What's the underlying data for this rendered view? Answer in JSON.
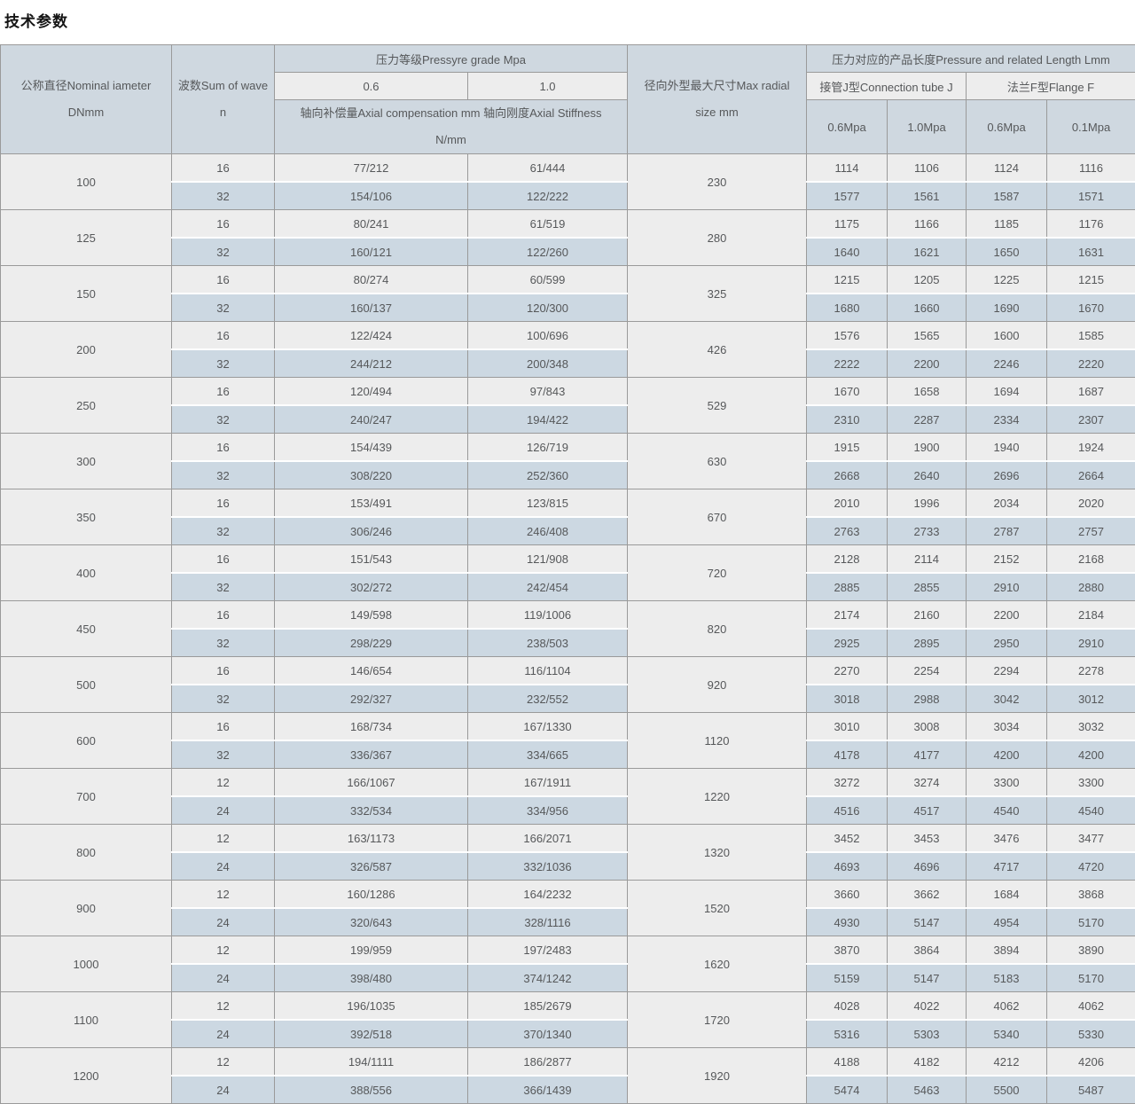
{
  "page_title": "技术参数",
  "colors": {
    "header_bg": "#cfd8e0",
    "subheader_bg": "#ededed",
    "row_light_bg": "#ededed",
    "row_blue_bg": "#ccd8e2",
    "border": "#9a9a9a",
    "text": "#56585a"
  },
  "table": {
    "headers": {
      "dn_line1": "公称直径Nominal iameter",
      "dn_line2": "DNmm",
      "wave_line1": "波数Sum of wave",
      "wave_line2": "n",
      "pressure_grade": "压力等级Pressyre grade Mpa",
      "grade_06": "0.6",
      "grade_10": "1.0",
      "axial_line1": "轴向补偿量Axial compensation mm 轴向刚度Axial Stiffness",
      "axial_line2": "N/mm",
      "radial_line1": "径向外型最大尺寸Max radial",
      "radial_line2": "size mm",
      "length_group": "压力对应的产品长度Pressure and related Length Lmm",
      "connection_tube": "接管J型Connection tube J",
      "flange": "法兰F型Flange F",
      "sub_cols": [
        "0.6Mpa",
        "1.0Mpa",
        "0.6Mpa",
        "0.1Mpa"
      ]
    },
    "rows": [
      {
        "dn": "100",
        "radial": "230",
        "sub": [
          {
            "waves": "16",
            "axial_06": "77/212",
            "axial_10": "61/444",
            "lengths": [
              "1114",
              "1106",
              "1124",
              "1116"
            ]
          },
          {
            "waves": "32",
            "axial_06": "154/106",
            "axial_10": "122/222",
            "lengths": [
              "1577",
              "1561",
              "1587",
              "1571"
            ]
          }
        ]
      },
      {
        "dn": "125",
        "radial": "280",
        "sub": [
          {
            "waves": "16",
            "axial_06": "80/241",
            "axial_10": "61/519",
            "lengths": [
              "1175",
              "1166",
              "1185",
              "1176"
            ]
          },
          {
            "waves": "32",
            "axial_06": "160/121",
            "axial_10": "122/260",
            "lengths": [
              "1640",
              "1621",
              "1650",
              "1631"
            ]
          }
        ]
      },
      {
        "dn": "150",
        "radial": "325",
        "sub": [
          {
            "waves": "16",
            "axial_06": "80/274",
            "axial_10": "60/599",
            "lengths": [
              "1215",
              "1205",
              "1225",
              "1215"
            ]
          },
          {
            "waves": "32",
            "axial_06": "160/137",
            "axial_10": "120/300",
            "lengths": [
              "1680",
              "1660",
              "1690",
              "1670"
            ]
          }
        ]
      },
      {
        "dn": "200",
        "radial": "426",
        "sub": [
          {
            "waves": "16",
            "axial_06": "122/424",
            "axial_10": "100/696",
            "lengths": [
              "1576",
              "1565",
              "1600",
              "1585"
            ]
          },
          {
            "waves": "32",
            "axial_06": "244/212",
            "axial_10": "200/348",
            "lengths": [
              "2222",
              "2200",
              "2246",
              "2220"
            ]
          }
        ]
      },
      {
        "dn": "250",
        "radial": "529",
        "sub": [
          {
            "waves": "16",
            "axial_06": "120/494",
            "axial_10": "97/843",
            "lengths": [
              "1670",
              "1658",
              "1694",
              "1687"
            ]
          },
          {
            "waves": "32",
            "axial_06": "240/247",
            "axial_10": "194/422",
            "lengths": [
              "2310",
              "2287",
              "2334",
              "2307"
            ]
          }
        ]
      },
      {
        "dn": "300",
        "radial": "630",
        "sub": [
          {
            "waves": "16",
            "axial_06": "154/439",
            "axial_10": "126/719",
            "lengths": [
              "1915",
              "1900",
              "1940",
              "1924"
            ]
          },
          {
            "waves": "32",
            "axial_06": "308/220",
            "axial_10": "252/360",
            "lengths": [
              "2668",
              "2640",
              "2696",
              "2664"
            ]
          }
        ]
      },
      {
        "dn": "350",
        "radial": "670",
        "sub": [
          {
            "waves": "16",
            "axial_06": "153/491",
            "axial_10": "123/815",
            "lengths": [
              "2010",
              "1996",
              "2034",
              "2020"
            ]
          },
          {
            "waves": "32",
            "axial_06": "306/246",
            "axial_10": "246/408",
            "lengths": [
              "2763",
              "2733",
              "2787",
              "2757"
            ]
          }
        ]
      },
      {
        "dn": "400",
        "radial": "720",
        "sub": [
          {
            "waves": "16",
            "axial_06": "151/543",
            "axial_10": "121/908",
            "lengths": [
              "2128",
              "2114",
              "2152",
              "2168"
            ]
          },
          {
            "waves": "32",
            "axial_06": "302/272",
            "axial_10": "242/454",
            "lengths": [
              "2885",
              "2855",
              "2910",
              "2880"
            ]
          }
        ]
      },
      {
        "dn": "450",
        "radial": "820",
        "sub": [
          {
            "waves": "16",
            "axial_06": "149/598",
            "axial_10": "119/1006",
            "lengths": [
              "2174",
              "2160",
              "2200",
              "2184"
            ]
          },
          {
            "waves": "32",
            "axial_06": "298/229",
            "axial_10": "238/503",
            "lengths": [
              "2925",
              "2895",
              "2950",
              "2910"
            ]
          }
        ]
      },
      {
        "dn": "500",
        "radial": "920",
        "sub": [
          {
            "waves": "16",
            "axial_06": "146/654",
            "axial_10": "116/1104",
            "lengths": [
              "2270",
              "2254",
              "2294",
              "2278"
            ]
          },
          {
            "waves": "32",
            "axial_06": "292/327",
            "axial_10": "232/552",
            "lengths": [
              "3018",
              "2988",
              "3042",
              "3012"
            ]
          }
        ]
      },
      {
        "dn": "600",
        "radial": "1120",
        "sub": [
          {
            "waves": "16",
            "axial_06": "168/734",
            "axial_10": "167/1330",
            "lengths": [
              "3010",
              "3008",
              "3034",
              "3032"
            ]
          },
          {
            "waves": "32",
            "axial_06": "336/367",
            "axial_10": "334/665",
            "lengths": [
              "4178",
              "4177",
              "4200",
              "4200"
            ]
          }
        ]
      },
      {
        "dn": "700",
        "radial": "1220",
        "sub": [
          {
            "waves": "12",
            "axial_06": "166/1067",
            "axial_10": "167/1911",
            "lengths": [
              "3272",
              "3274",
              "3300",
              "3300"
            ]
          },
          {
            "waves": "24",
            "axial_06": "332/534",
            "axial_10": "334/956",
            "lengths": [
              "4516",
              "4517",
              "4540",
              "4540"
            ]
          }
        ]
      },
      {
        "dn": "800",
        "radial": "1320",
        "sub": [
          {
            "waves": "12",
            "axial_06": "163/1173",
            "axial_10": "166/2071",
            "lengths": [
              "3452",
              "3453",
              "3476",
              "3477"
            ]
          },
          {
            "waves": "24",
            "axial_06": "326/587",
            "axial_10": "332/1036",
            "lengths": [
              "4693",
              "4696",
              "4717",
              "4720"
            ]
          }
        ]
      },
      {
        "dn": "900",
        "radial": "1520",
        "sub": [
          {
            "waves": "12",
            "axial_06": "160/1286",
            "axial_10": "164/2232",
            "lengths": [
              "3660",
              "3662",
              "1684",
              "3868"
            ]
          },
          {
            "waves": "24",
            "axial_06": "320/643",
            "axial_10": "328/1116",
            "lengths": [
              "4930",
              "5147",
              "4954",
              "5170"
            ]
          }
        ]
      },
      {
        "dn": "1000",
        "radial": "1620",
        "sub": [
          {
            "waves": "12",
            "axial_06": "199/959",
            "axial_10": "197/2483",
            "lengths": [
              "3870",
              "3864",
              "3894",
              "3890"
            ]
          },
          {
            "waves": "24",
            "axial_06": "398/480",
            "axial_10": "374/1242",
            "lengths": [
              "5159",
              "5147",
              "5183",
              "5170"
            ]
          }
        ]
      },
      {
        "dn": "1100",
        "radial": "1720",
        "sub": [
          {
            "waves": "12",
            "axial_06": "196/1035",
            "axial_10": "185/2679",
            "lengths": [
              "4028",
              "4022",
              "4062",
              "4062"
            ]
          },
          {
            "waves": "24",
            "axial_06": "392/518",
            "axial_10": "370/1340",
            "lengths": [
              "5316",
              "5303",
              "5340",
              "5330"
            ]
          }
        ]
      },
      {
        "dn": "1200",
        "radial": "1920",
        "sub": [
          {
            "waves": "12",
            "axial_06": "194/1111",
            "axial_10": "186/2877",
            "lengths": [
              "4188",
              "4182",
              "4212",
              "4206"
            ]
          },
          {
            "waves": "24",
            "axial_06": "388/556",
            "axial_10": "366/1439",
            "lengths": [
              "5474",
              "5463",
              "5500",
              "5487"
            ]
          }
        ]
      }
    ]
  }
}
